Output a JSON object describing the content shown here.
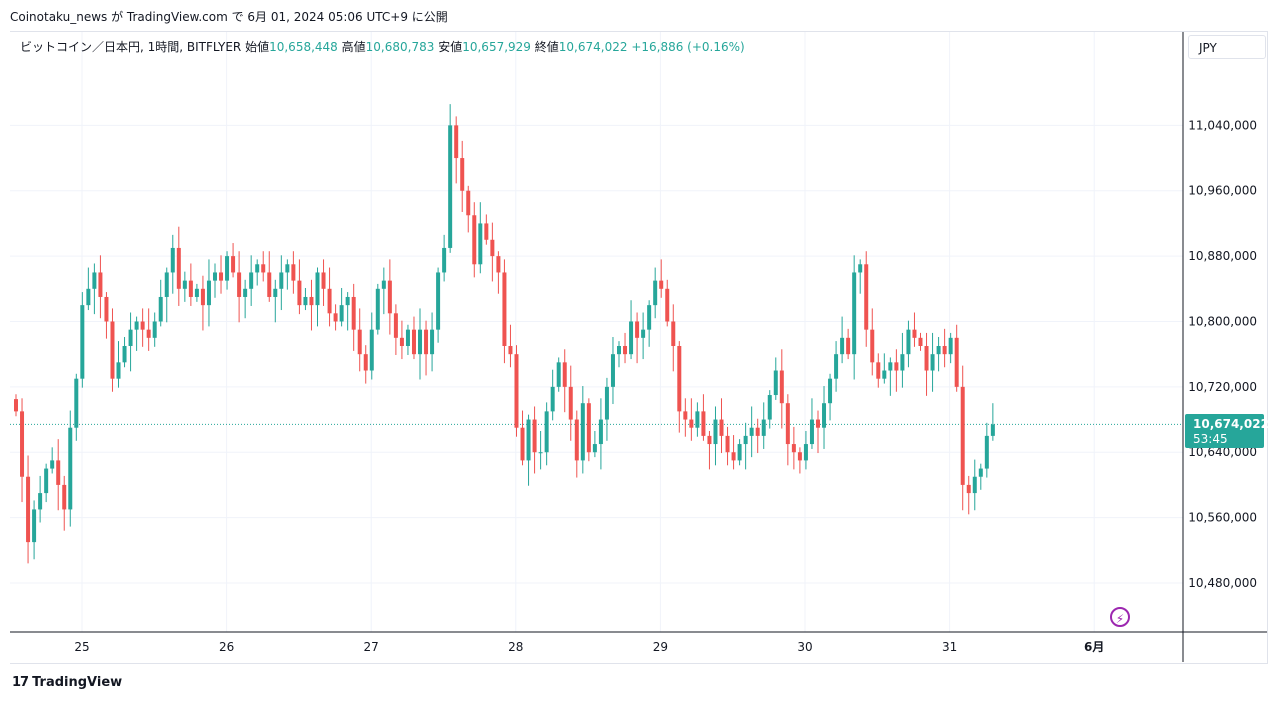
{
  "header": {
    "byline": "Coinotaku_news が TradingView.com で 6月 01, 2024 05:06 UTC+9 に公開"
  },
  "legend": {
    "symbol": "ビットコイン／日本円, 1時間, BITFLYER",
    "open_label": "始値",
    "open_value": "10,658,448",
    "high_label": "高値",
    "high_value": "10,680,783",
    "low_label": "安値",
    "low_value": "10,657,929",
    "close_label": "終値",
    "close_value": "10,674,022",
    "change": "+16,886 (+0.16%)"
  },
  "currency": "JPY",
  "price_tag": {
    "price": "10,674,022",
    "countdown": "53:45"
  },
  "footer": {
    "brand": "TradingView",
    "brand_mark": "17"
  },
  "colors": {
    "up": "#26a69a",
    "down": "#ef5350",
    "grid": "#f0f3fa",
    "text": "#131722",
    "accent": "#9c27b0"
  },
  "chart_data": {
    "type": "candlestick",
    "interval": "1h",
    "ylim": [
      10420000,
      11120000
    ],
    "y_ticks": [
      10480000,
      10560000,
      10640000,
      10720000,
      10800000,
      10880000,
      10960000,
      11040000
    ],
    "y_tick_labels": [
      "10,480,000",
      "10,560,000",
      "10,640,000",
      "10,720,000",
      "10,800,000",
      "10,880,000",
      "10,960,000",
      "11,040,000"
    ],
    "x_ticks": [
      {
        "label": "25",
        "day": 25
      },
      {
        "label": "26",
        "day": 26
      },
      {
        "label": "27",
        "day": 27
      },
      {
        "label": "28",
        "day": 28
      },
      {
        "label": "29",
        "day": 29
      },
      {
        "label": "30",
        "day": 30
      },
      {
        "label": "31",
        "day": 31
      },
      {
        "label": "6月",
        "day": 32
      }
    ],
    "current_price": 10674022,
    "closes": [
      10690000,
      10610000,
      10530000,
      10570000,
      10590000,
      10620000,
      10630000,
      10600000,
      10570000,
      10670000,
      10730000,
      10820000,
      10840000,
      10860000,
      10830000,
      10800000,
      10730000,
      10750000,
      10770000,
      10790000,
      10800000,
      10790000,
      10780000,
      10800000,
      10830000,
      10860000,
      10890000,
      10840000,
      10850000,
      10830000,
      10840000,
      10820000,
      10850000,
      10860000,
      10850000,
      10880000,
      10860000,
      10830000,
      10840000,
      10860000,
      10870000,
      10860000,
      10830000,
      10840000,
      10860000,
      10870000,
      10850000,
      10820000,
      10830000,
      10820000,
      10860000,
      10840000,
      10810000,
      10800000,
      10820000,
      10830000,
      10790000,
      10760000,
      10740000,
      10790000,
      10840000,
      10850000,
      10810000,
      10780000,
      10770000,
      10790000,
      10760000,
      10790000,
      10760000,
      10790000,
      10860000,
      10890000,
      11040000,
      11000000,
      10960000,
      10930000,
      10870000,
      10920000,
      10900000,
      10880000,
      10860000,
      10770000,
      10760000,
      10670000,
      10630000,
      10680000,
      10640000,
      10640000,
      10690000,
      10720000,
      10750000,
      10720000,
      10680000,
      10630000,
      10700000,
      10640000,
      10650000,
      10680000,
      10720000,
      10760000,
      10770000,
      10760000,
      10800000,
      10780000,
      10790000,
      10820000,
      10850000,
      10840000,
      10800000,
      10770000,
      10690000,
      10680000,
      10670000,
      10690000,
      10660000,
      10650000,
      10680000,
      10660000,
      10640000,
      10630000,
      10650000,
      10660000,
      10670000,
      10660000,
      10680000,
      10710000,
      10740000,
      10700000,
      10650000,
      10640000,
      10630000,
      10650000,
      10680000,
      10670000,
      10700000,
      10730000,
      10760000,
      10780000,
      10760000,
      10860000,
      10870000,
      10790000,
      10750000,
      10730000,
      10740000,
      10750000,
      10740000,
      10760000,
      10790000,
      10780000,
      10770000,
      10740000,
      10760000,
      10770000,
      10760000,
      10780000,
      10720000,
      10600000,
      10590000,
      10610000,
      10620000,
      10660000,
      10674022
    ]
  }
}
